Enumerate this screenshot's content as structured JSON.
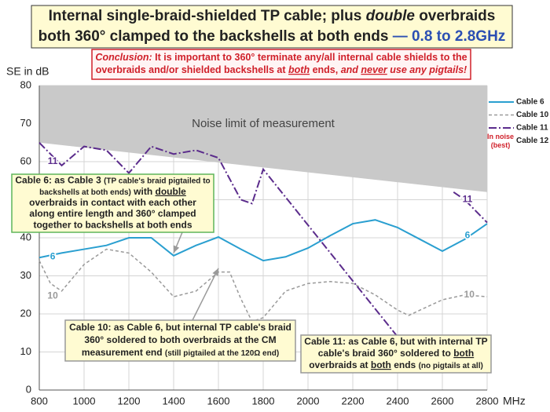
{
  "chart_data": {
    "type": "line",
    "title_lines": [
      [
        "Internal single-braid-shielded TP cable; plus ",
        {
          "text": "double",
          "italic": true
        },
        " overbraids"
      ],
      [
        "both 360° clamped to the backshells at both ends ",
        {
          "text": "— 0.8 to 2.8GHz",
          "color": "#2b4fb3"
        }
      ]
    ],
    "conclusion_lines": [
      [
        {
          "text": "Conclusion:",
          "italic": true
        },
        " It is important to 360° terminate any/all internal cable shields to the"
      ],
      [
        "overbraids and/or shielded backshells at ",
        {
          "text": "both",
          "italic": true,
          "underline": true
        },
        " ends, ",
        {
          "text": "and ",
          "italic": true
        },
        {
          "text": "never",
          "italic": true,
          "underline": true
        },
        {
          "text": " use any pigtails!",
          "italic": true
        }
      ]
    ],
    "y_label": "SE in dB",
    "x_label": "MHz",
    "xlim": [
      800,
      2800
    ],
    "ylim": [
      0,
      80
    ],
    "xticks": [
      800,
      1000,
      1200,
      1400,
      1600,
      1800,
      2000,
      2200,
      2400,
      2600,
      2800
    ],
    "yticks": [
      0,
      10,
      20,
      30,
      40,
      50,
      60,
      70,
      80
    ],
    "grid": true,
    "noise_limit": {
      "label": "Noise limit of measurement",
      "color": "#c9c9c9",
      "x": [
        800,
        2800
      ],
      "values": [
        65,
        52
      ]
    },
    "series": [
      {
        "name": "Cable 6",
        "color": "#2a9fd0",
        "width": 2,
        "dash": "none",
        "x": [
          800,
          900,
          1000,
          1100,
          1200,
          1300,
          1400,
          1500,
          1600,
          1700,
          1800,
          1900,
          2000,
          2100,
          2200,
          2300,
          2400,
          2500,
          2600,
          2700,
          2800
        ],
        "values": [
          34.8,
          36,
          37,
          38,
          40,
          40,
          35.3,
          38,
          40.2,
          37,
          34,
          35,
          37.3,
          40.6,
          43.7,
          44.7,
          42.7,
          39.6,
          36.5,
          39.6,
          43.7
        ],
        "labels": [
          {
            "text": "6",
            "x": 860,
            "y": 35
          },
          {
            "text": "6",
            "x": 2712,
            "y": 40.6
          }
        ]
      },
      {
        "name": "Cable 10",
        "color": "#9a9a9a",
        "width": 1.5,
        "dash": "4 3",
        "x": [
          800,
          850,
          900,
          1000,
          1100,
          1200,
          1300,
          1400,
          1500,
          1600,
          1650,
          1700,
          1750,
          1800,
          1900,
          2000,
          2100,
          2200,
          2300,
          2400,
          2450,
          2500,
          2600,
          2700,
          2800
        ],
        "values": [
          34,
          28,
          26,
          33,
          37,
          36,
          31,
          24.5,
          26,
          31,
          31,
          24,
          18,
          19,
          26,
          28,
          28.5,
          28,
          25,
          21,
          19.6,
          21,
          23.7,
          25,
          24.5
        ],
        "labels": [
          {
            "text": "10",
            "x": 860,
            "y": 24.7
          },
          {
            "text": "10",
            "x": 2720,
            "y": 25
          }
        ]
      },
      {
        "name": "Cable 11",
        "color": "#5b2c8c",
        "width": 2,
        "dash": "10 3 2 3",
        "x": [
          800,
          900,
          1000,
          1100,
          1200,
          1300,
          1400,
          1500,
          1600,
          1700,
          1750,
          1800,
          2400,
          null,
          2650,
          2700,
          2800
        ],
        "values": [
          65,
          59,
          64,
          63,
          57,
          64,
          62,
          63,
          61,
          50,
          49,
          58,
          14,
          null,
          52,
          50,
          44
        ],
        "labels": [
          {
            "text": "11",
            "x": 860,
            "y": 60
          },
          {
            "text": "11",
            "x": 2712,
            "y": 50
          }
        ]
      },
      {
        "name": "Cable 12",
        "note": [
          "In noise",
          "(best)"
        ],
        "note_color": "#d0202a",
        "x": [],
        "values": []
      }
    ],
    "boxes": [
      {
        "border": "#5fb55a",
        "lines": [
          [
            "Cable 6: as Cable 3 ",
            {
              "text": "(TP cable's braid pigtailed to",
              "small": true
            }
          ],
          [
            {
              "text": "backshells at both ends)",
              "small": true
            },
            " with ",
            {
              "text": "double",
              "underline": true
            }
          ],
          [
            "overbraids in contact with each other"
          ],
          [
            "along entire length and 360° clamped"
          ],
          [
            "together to backshells at both ends"
          ]
        ]
      },
      {
        "border": "#999999",
        "lines": [
          [
            "Cable 10: as Cable 6, but internal TP cable's braid"
          ],
          [
            "360° soldered to both overbraids at the CM"
          ],
          [
            "measurement end ",
            {
              "text": "(still pigtailed at the 120Ω end)",
              "small": true
            }
          ]
        ]
      },
      {
        "border": "#999999",
        "lines": [
          [
            "Cable 11: as Cable 6, but with internal TP"
          ],
          [
            "cable's braid 360° soldered to ",
            {
              "text": "both",
              "underline": true
            }
          ],
          [
            "overbraids at ",
            {
              "text": "both",
              "underline": true
            },
            " ends ",
            {
              "text": "(no pigtails at all)",
              "small": true
            }
          ]
        ]
      }
    ]
  }
}
